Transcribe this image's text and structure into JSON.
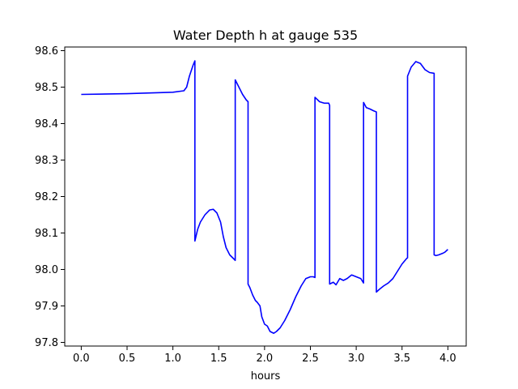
{
  "chart_data": {
    "type": "line",
    "title": "Water Depth h at gauge 535",
    "xlabel": "hours",
    "ylabel": "",
    "xlim": [
      -0.18,
      4.2
    ],
    "ylim": [
      97.79,
      98.61
    ],
    "xticks": [
      0.0,
      0.5,
      1.0,
      1.5,
      2.0,
      2.5,
      3.0,
      3.5,
      4.0
    ],
    "xtick_labels": [
      "0.0",
      "0.5",
      "1.0",
      "1.5",
      "2.0",
      "2.5",
      "3.0",
      "3.5",
      "4.0"
    ],
    "yticks": [
      97.8,
      97.9,
      98.0,
      98.1,
      98.2,
      98.3,
      98.4,
      98.5,
      98.6
    ],
    "ytick_labels": [
      "97.8",
      "97.9",
      "98.0",
      "98.1",
      "98.2",
      "98.3",
      "98.4",
      "98.5",
      "98.6"
    ],
    "grid": false,
    "series": [
      {
        "color": "#0000ff",
        "x": [
          0.0,
          0.5,
          1.0,
          1.12,
          1.15,
          1.18,
          1.22,
          1.24,
          1.24,
          1.27,
          1.3,
          1.35,
          1.4,
          1.44,
          1.48,
          1.52,
          1.55,
          1.58,
          1.62,
          1.68,
          1.68,
          1.72,
          1.76,
          1.8,
          1.82,
          1.82,
          1.84,
          1.87,
          1.9,
          1.92,
          1.95,
          1.97,
          2.0,
          2.03,
          2.06,
          2.1,
          2.13,
          2.17,
          2.22,
          2.28,
          2.34,
          2.4,
          2.45,
          2.5,
          2.53,
          2.55,
          2.55,
          2.6,
          2.65,
          2.7,
          2.71,
          2.71,
          2.75,
          2.78,
          2.82,
          2.86,
          2.9,
          2.95,
          3.0,
          3.05,
          3.08,
          3.08,
          3.11,
          3.15,
          3.19,
          3.22,
          3.22,
          3.25,
          3.3,
          3.35,
          3.4,
          3.45,
          3.5,
          3.55,
          3.56,
          3.56,
          3.6,
          3.65,
          3.7,
          3.75,
          3.8,
          3.85,
          3.85,
          3.87,
          3.9,
          3.95,
          3.97,
          4.0
        ],
        "y": [
          98.48,
          98.482,
          98.486,
          98.49,
          98.5,
          98.53,
          98.56,
          98.572,
          98.078,
          98.11,
          98.13,
          98.15,
          98.163,
          98.165,
          98.155,
          98.13,
          98.09,
          98.06,
          98.04,
          98.025,
          98.52,
          98.5,
          98.48,
          98.465,
          98.46,
          97.96,
          97.95,
          97.93,
          97.915,
          97.91,
          97.9,
          97.87,
          97.85,
          97.845,
          97.83,
          97.825,
          97.83,
          97.84,
          97.86,
          97.89,
          97.925,
          97.955,
          97.975,
          97.98,
          97.98,
          97.978,
          98.472,
          98.46,
          98.456,
          98.456,
          98.45,
          97.96,
          97.965,
          97.958,
          97.975,
          97.97,
          97.975,
          97.985,
          97.98,
          97.975,
          97.963,
          98.458,
          98.444,
          98.44,
          98.435,
          98.432,
          97.938,
          97.945,
          97.955,
          97.963,
          97.975,
          97.995,
          98.015,
          98.03,
          98.032,
          98.53,
          98.555,
          98.57,
          98.565,
          98.548,
          98.54,
          98.538,
          98.04,
          98.038,
          98.04,
          98.045,
          98.048,
          98.055
        ]
      }
    ]
  }
}
